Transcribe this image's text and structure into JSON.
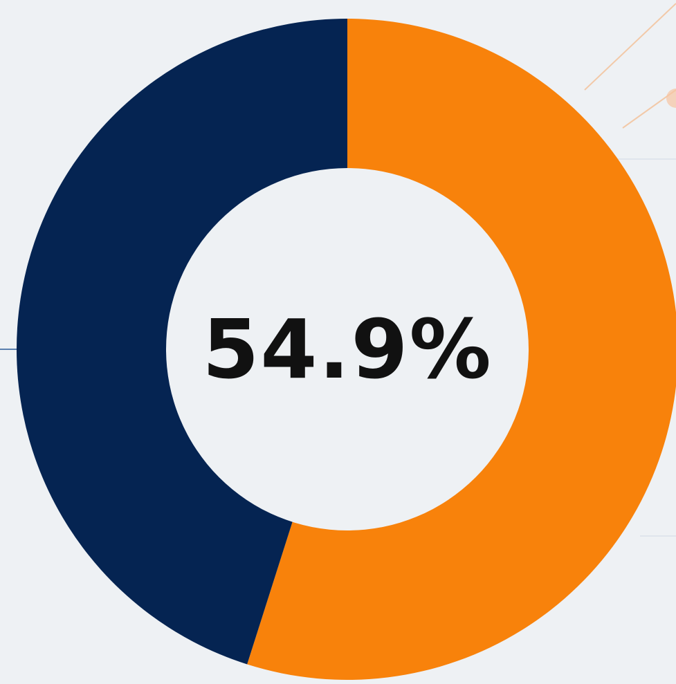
{
  "chart_data": {
    "type": "pie",
    "style": "donut",
    "center_label": "54.9%",
    "slices": [
      {
        "value": 54.9,
        "color": "#f8820b"
      },
      {
        "value": 45.1,
        "color": "#052452"
      }
    ],
    "start_angle_deg": 0,
    "direction": "clockwise"
  },
  "colors": {
    "background": "#eef1f4",
    "center_fill": "#eef1f4",
    "label": "#111111",
    "decor_orange": "#f4c7a6",
    "decor_blue": "#5a7fae"
  }
}
